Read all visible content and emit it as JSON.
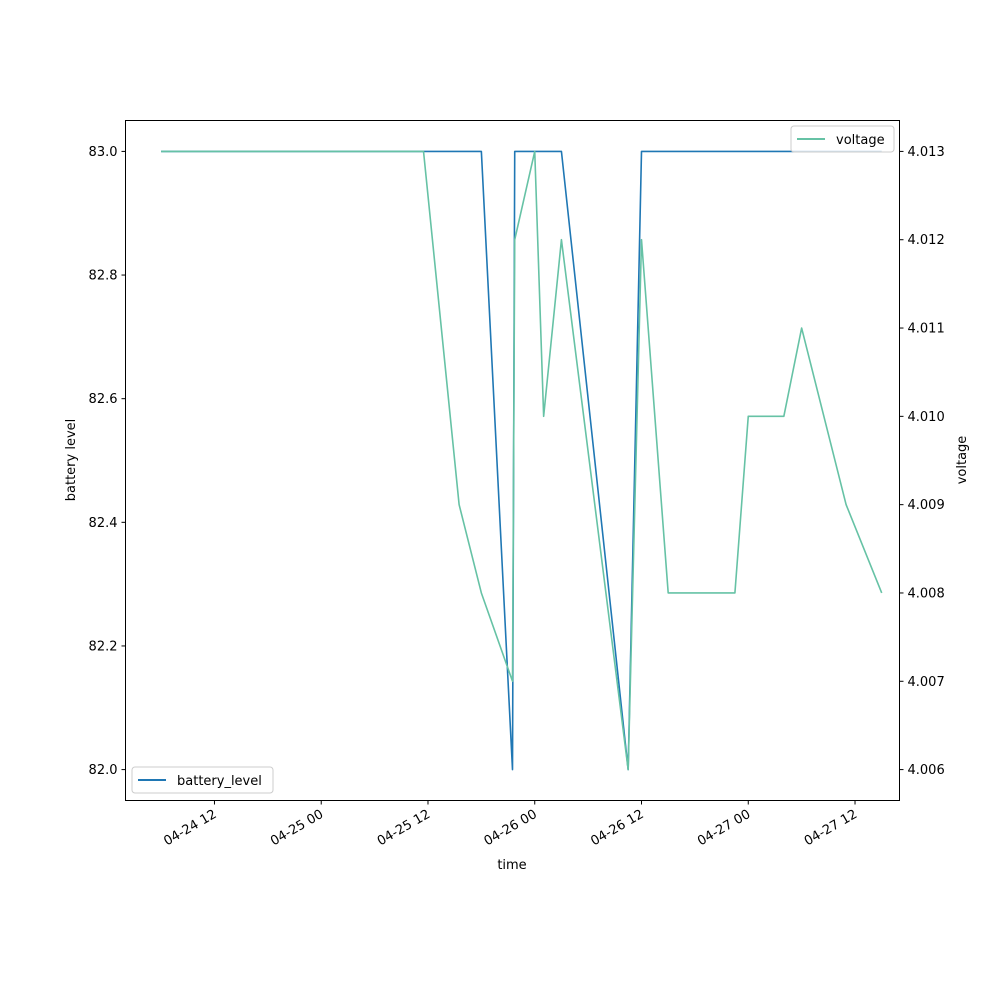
{
  "chart_data": {
    "type": "line",
    "xlabel": "time",
    "ylabel_left": "battery level",
    "ylabel_right": "voltage",
    "x_ticks": [
      "04-24 12",
      "04-25 00",
      "04-25 12",
      "04-26 00",
      "04-26 12",
      "04-27 00",
      "04-27 12"
    ],
    "xlim": [
      "04-24 02:00",
      "04-27 17:00"
    ],
    "y_left_ticks": [
      "82.0",
      "82.2",
      "82.4",
      "82.6",
      "82.8",
      "83.0"
    ],
    "y_left_lim": [
      81.95,
      83.05
    ],
    "y_right_ticks": [
      "4.006",
      "4.007",
      "4.008",
      "4.009",
      "4.010",
      "4.011",
      "4.012",
      "4.013"
    ],
    "y_right_lim": [
      4.00565,
      4.01335
    ],
    "grid": false,
    "series": [
      {
        "name": "battery_level",
        "axis": "left",
        "color": "#1f77b4",
        "legend_position": "lower-left",
        "points": [
          [
            "04-24 06:00",
            83.0
          ],
          [
            "04-25 18:00",
            83.0
          ],
          [
            "04-25 21:30",
            82.0
          ],
          [
            "04-25 21:45",
            83.0
          ],
          [
            "04-26 03:00",
            83.0
          ],
          [
            "04-26 10:30",
            82.0
          ],
          [
            "04-26 12:00",
            83.0
          ],
          [
            "04-27 15:00",
            83.0
          ]
        ]
      },
      {
        "name": "voltage",
        "axis": "right",
        "color": "#66c2a5",
        "legend_position": "upper-right",
        "points": [
          [
            "04-24 06:00",
            4.013
          ],
          [
            "04-25 11:30",
            4.013
          ],
          [
            "04-25 15:30",
            4.009
          ],
          [
            "04-25 18:00",
            4.008
          ],
          [
            "04-25 21:30",
            4.007
          ],
          [
            "04-25 21:45",
            4.012
          ],
          [
            "04-26 00:00",
            4.013
          ],
          [
            "04-26 01:00",
            4.01
          ],
          [
            "04-26 03:00",
            4.012
          ],
          [
            "04-26 10:30",
            4.006
          ],
          [
            "04-26 12:00",
            4.012
          ],
          [
            "04-26 15:00",
            4.008
          ],
          [
            "04-26 22:30",
            4.008
          ],
          [
            "04-27 00:00",
            4.01
          ],
          [
            "04-27 04:00",
            4.01
          ],
          [
            "04-27 06:00",
            4.011
          ],
          [
            "04-27 11:00",
            4.009
          ],
          [
            "04-27 15:00",
            4.008
          ]
        ]
      }
    ]
  }
}
